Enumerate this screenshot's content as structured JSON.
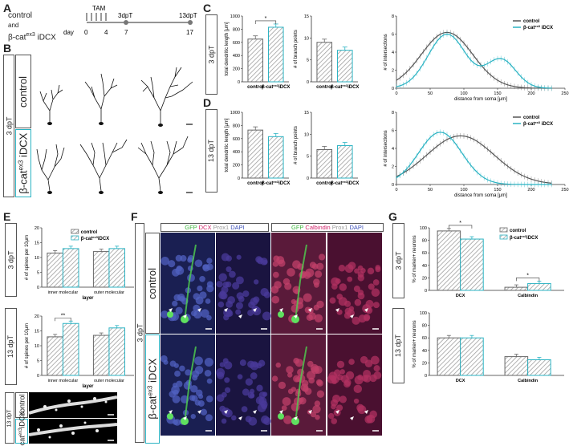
{
  "panels": {
    "A": "A",
    "B": "B",
    "C": "C",
    "D": "D",
    "E": "E",
    "F": "F",
    "G": "G"
  },
  "colors": {
    "control": "#9a9a9a",
    "mutant": "#2bb3c3",
    "hatch": "#888888"
  },
  "panelA": {
    "legend_control": "control",
    "legend_and": "and",
    "legend_mutant": "β-cat",
    "legend_mutant_sup": "ex3",
    "legend_mutant_suffix": " iDCX",
    "day_label": "day",
    "tam": "TAM",
    "tp1": "3dpT",
    "tp2": "13dpT",
    "days": [
      "0",
      "4",
      "7",
      "17"
    ]
  },
  "panelB": {
    "timepoint": "3 dpT",
    "control": "control",
    "mutant": "β-cat",
    "mutant_sup": "ex3",
    "mutant_suffix": " iDCX"
  },
  "groups": {
    "control": "control",
    "mutant_prefix": "β-cat",
    "mutant_sup": "ex3",
    "mutant_suffix": "iDCX"
  },
  "panelC": {
    "timepoint": "3 dpT",
    "bar1": {
      "ylabel": "total dendritic length [μm]",
      "yticks": [
        "0",
        "200",
        "400",
        "600",
        "800",
        "1000"
      ],
      "ylim": [
        0,
        1000
      ],
      "values": [
        650,
        830
      ],
      "sig": "*"
    },
    "bar2": {
      "ylabel": "# of branch points",
      "yticks": [
        "0",
        "5",
        "10",
        "15"
      ],
      "ylim": [
        0,
        15
      ],
      "values": [
        9,
        7.2
      ]
    },
    "sholl": {
      "ylabel": "# of intersections",
      "xlabel": "distance from soma [μm]",
      "yticks": [
        "0",
        "2",
        "4",
        "6",
        "8"
      ],
      "xticks": [
        "0",
        "50",
        "100",
        "150",
        "200",
        "250"
      ],
      "legend": [
        "control",
        "β-cat"
      ]
    }
  },
  "panelD": {
    "timepoint": "13 dpT",
    "bar1": {
      "ylabel": "total dendritic length [μm]",
      "yticks": [
        "0",
        "200",
        "400",
        "600",
        "800",
        "1000"
      ],
      "ylim": [
        0,
        1000
      ],
      "values": [
        730,
        630
      ]
    },
    "bar2": {
      "ylabel": "# of branch points",
      "yticks": [
        "0",
        "5",
        "10",
        "15"
      ],
      "ylim": [
        0,
        15
      ],
      "values": [
        6.5,
        7.4
      ]
    },
    "sholl": {
      "ylabel": "# of intersections",
      "xlabel": "distance from soma [μm]",
      "yticks": [
        "0",
        "2",
        "4",
        "6",
        "8"
      ],
      "xticks": [
        "0",
        "50",
        "100",
        "150",
        "200",
        "250"
      ],
      "legend": [
        "control",
        "β-cat"
      ]
    }
  },
  "panelE": {
    "tp1": "3 dpT",
    "tp2": "13 dpT",
    "ylabel": "# of spines per 10μm",
    "yticks": [
      "0",
      "5",
      "10",
      "15",
      "20"
    ],
    "categories": [
      "inner molecular",
      "outer molecular"
    ],
    "xlabel": "layer",
    "legend": [
      "control",
      "β-cat"
    ],
    "vals_3dpt": {
      "control": [
        11.5,
        12
      ],
      "mutant": [
        13,
        13
      ]
    },
    "vals_13dpt": {
      "control": [
        13,
        13.5
      ],
      "mutant": [
        17.5,
        16
      ]
    },
    "sig": "**",
    "bottom_tp": "13 dpT",
    "bottom_control": "control",
    "bottom_mutant": "β-cat",
    "bottom_mutant_sup": "ex3",
    "bottom_mutant_suffix": "iDCX"
  },
  "panelF": {
    "timepoint": "3 dpT",
    "control": "control",
    "mutant": "β-cat",
    "mutant_sup": "ex3",
    "mutant_suffix": " iDCX",
    "header1": {
      "gfp": "GFP",
      "dcx": "DCX",
      "prox1": "Prox1",
      "dapi": "DAPI"
    },
    "header2": {
      "gfp": "GFP",
      "calb": "Calbindin",
      "prox1": "Prox1",
      "dapi": "DAPI"
    }
  },
  "panelG": {
    "tp1": "3 dpT",
    "tp2": "13 dpT",
    "ylabel": "% of marker+ neurons",
    "yticks": [
      "0",
      "20",
      "40",
      "60",
      "80",
      "100"
    ],
    "categories": [
      "DCX",
      "Calbindin"
    ],
    "legend": [
      "control",
      "β-cat"
    ],
    "vals_3dpt": {
      "control": [
        95,
        5
      ],
      "mutant": [
        82,
        11
      ]
    },
    "vals_13dpt": {
      "control": [
        60,
        30
      ],
      "mutant": [
        60,
        25
      ]
    },
    "sig1": "*",
    "sig2": "*"
  }
}
